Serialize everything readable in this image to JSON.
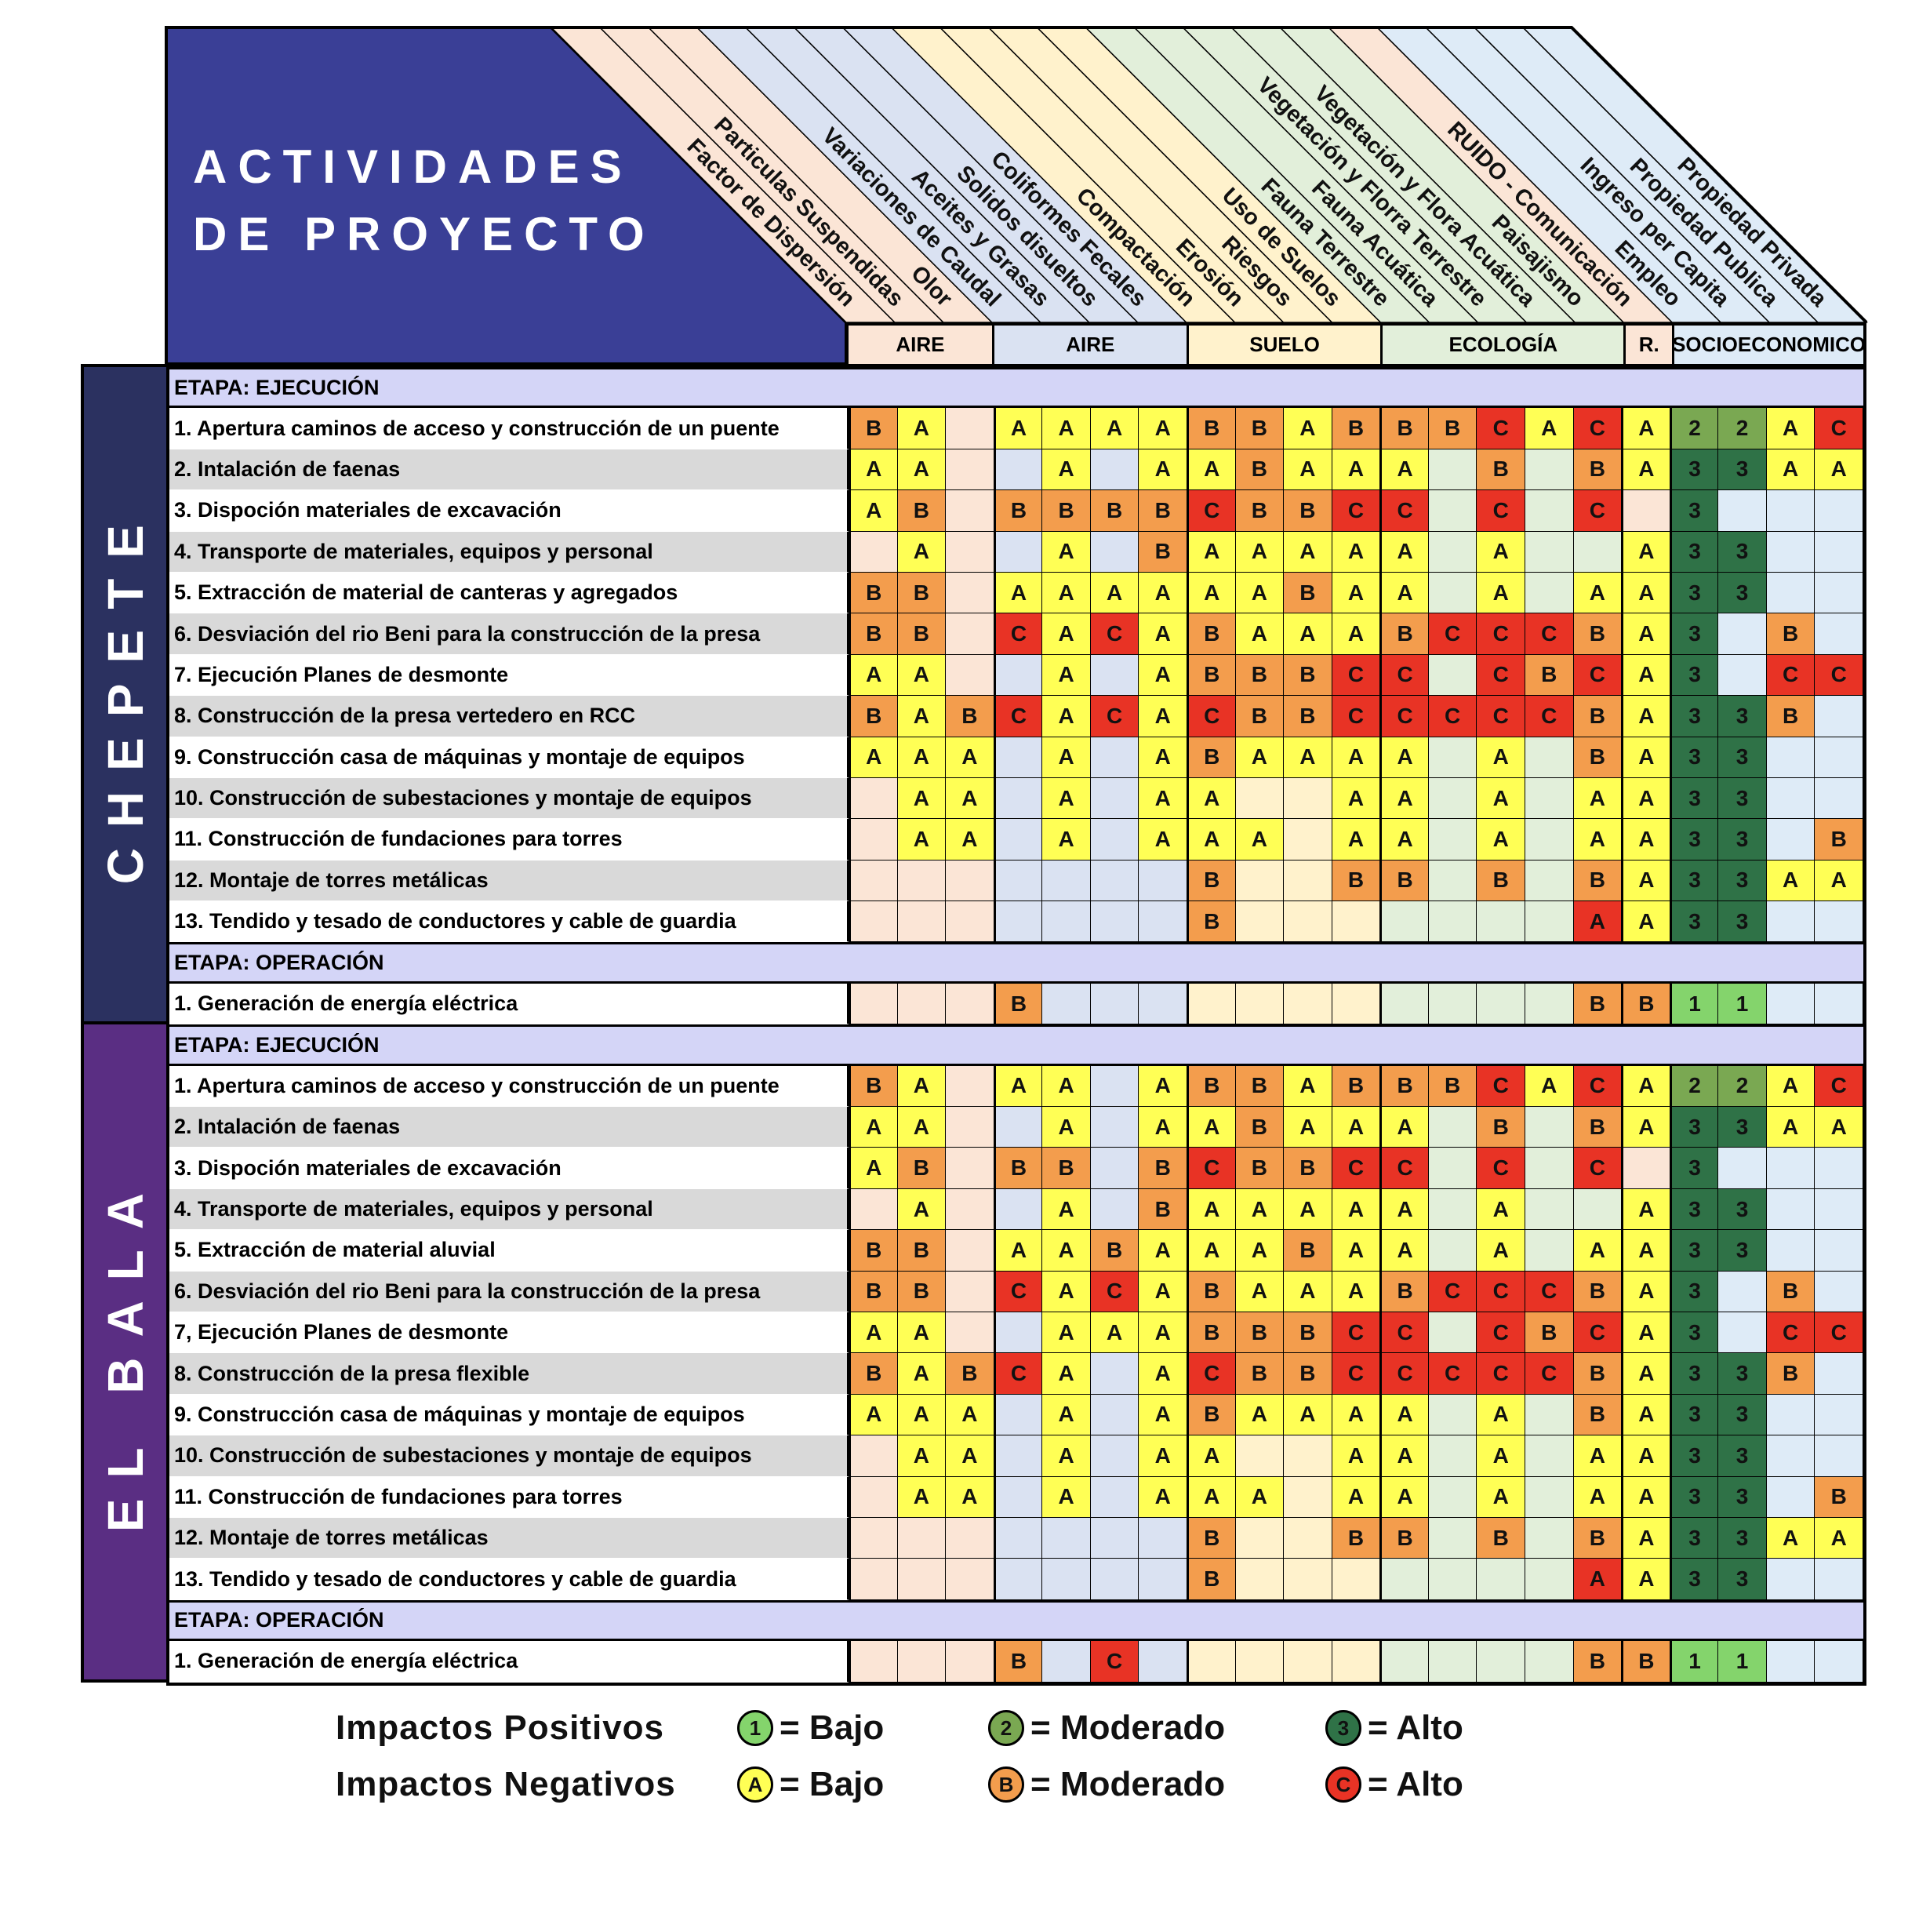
{
  "title": {
    "line1": "ACTIVIDADES",
    "line2": "DE PROYECTO"
  },
  "level_colors": {
    "A": "#ffff55",
    "B": "#f39d4d",
    "C": "#e83325",
    "1": "#84d46c",
    "2": "#7aa852",
    "3": "#2f7247"
  },
  "header_fill": "#3a3f96",
  "groups": [
    {
      "label": "AIRE",
      "span": 3,
      "color": "#fbe5d6"
    },
    {
      "label": "AIRE",
      "span": 4,
      "color": "#dae2f2"
    },
    {
      "label": "SUELO",
      "span": 4,
      "color": "#fff2cc"
    },
    {
      "label": "ECOLOGÍA",
      "span": 5,
      "color": "#e2efda"
    },
    {
      "label": "R.",
      "span": 1,
      "color": "#fbe5d6"
    },
    {
      "label": "SOCIOECONOMICO",
      "span": 4,
      "color": "#deebf7"
    }
  ],
  "factors": [
    "Factor de Dispersión",
    "Particulas Suspendidas",
    "Olor",
    "Variaciones de Caudal",
    "Aceites y Grasas",
    "Solidos disueltos",
    "Coliformes Fecales",
    "Compactación",
    "Erosión",
    "Riesgos",
    "Uso de Suelos",
    "Fauna Terrestre",
    "Fauna Acuática",
    "Vegetación y Florra Terrestre",
    "Vegetación y Flora Acuática",
    "Paisajismo",
    "RUIDO - Comunicación",
    "Empleo",
    "Ingreso per Capita",
    "Propiedad Publica",
    "Propiedad Privada"
  ],
  "sections": [
    {
      "name": "CHEPETE",
      "color": "#2b3160",
      "stages": [
        {
          "label": "ETAPA: EJECUCIÓN",
          "rows": [
            {
              "label": "1. Apertura caminos de acceso y construcción de un puente",
              "cells": [
                "B",
                "A",
                "",
                "A",
                "A",
                "A",
                "A",
                "B",
                "B",
                "A",
                "B",
                "B",
                "B",
                "C",
                "A",
                "C",
                "A",
                "2",
                "2",
                "A",
                "C"
              ]
            },
            {
              "label": "2. Intalación de faenas",
              "cells": [
                "A",
                "A",
                "",
                "",
                "A",
                "",
                "A",
                "A",
                "B",
                "A",
                "A",
                "A",
                "",
                "B",
                "",
                "B",
                "A",
                "3",
                "3",
                "A",
                "A"
              ]
            },
            {
              "label": "3. Dispoción materiales de excavación",
              "cells": [
                "A",
                "B",
                "",
                "B",
                "B",
                "B",
                "B",
                "C",
                "B",
                "B",
                "C",
                "C",
                "",
                "C",
                "",
                "C",
                "",
                "3",
                "",
                "",
                ""
              ]
            },
            {
              "label": "4. Transporte de materiales, equipos y personal",
              "cells": [
                "",
                "A",
                "",
                "",
                "A",
                "",
                "B",
                "A",
                "A",
                "A",
                "A",
                "A",
                "",
                "A",
                "",
                "",
                "A",
                "3",
                "3",
                "",
                ""
              ]
            },
            {
              "label": "5. Extracción de material de canteras y agregados",
              "cells": [
                "B",
                "B",
                "",
                "A",
                "A",
                "A",
                "A",
                "A",
                "A",
                "B",
                "A",
                "A",
                "",
                "A",
                "",
                "A",
                "A",
                "3",
                "3",
                "",
                ""
              ]
            },
            {
              "label": "6. Desviación del rio Beni para la construcción de la presa",
              "cells": [
                "B",
                "B",
                "",
                "C",
                "A",
                "C",
                "A",
                "B",
                "A",
                "A",
                "A",
                "B",
                "C",
                "C",
                "C",
                "B",
                "A",
                "3",
                "",
                "B",
                ""
              ]
            },
            {
              "label": "7. Ejecución Planes de desmonte",
              "cells": [
                "A",
                "A",
                "",
                "",
                "A",
                "",
                "A",
                "B",
                "B",
                "B",
                "C",
                "C",
                "",
                "C",
                "B",
                "C",
                "A",
                "3",
                "",
                "C",
                "C"
              ]
            },
            {
              "label": "8. Construcción de la presa vertedero en RCC",
              "cells": [
                "B",
                "A",
                "B",
                "C",
                "A",
                "C",
                "A",
                "C",
                "B",
                "B",
                "C",
                "C",
                "C",
                "C",
                "C",
                "B",
                "A",
                "3",
                "3",
                "B",
                ""
              ]
            },
            {
              "label": "9. Construcción casa de máquinas y montaje de equipos",
              "cells": [
                "A",
                "A",
                "A",
                "",
                "A",
                "",
                "A",
                "B",
                "A",
                "A",
                "A",
                "A",
                "",
                "A",
                "",
                "B",
                "A",
                "3",
                "3",
                "",
                ""
              ]
            },
            {
              "label": "10. Construcción de subestaciones y montaje de equipos",
              "cells": [
                "",
                "A",
                "A",
                "",
                "A",
                "",
                "A",
                "A",
                "",
                "",
                "A",
                "A",
                "",
                "A",
                "",
                "A",
                "A",
                "3",
                "3",
                "",
                ""
              ]
            },
            {
              "label": "11. Construcción de fundaciones para torres",
              "cells": [
                "",
                "A",
                "A",
                "",
                "A",
                "",
                "A",
                "A",
                "A",
                "",
                "A",
                "A",
                "",
                "A",
                "",
                "A",
                "A",
                "3",
                "3",
                "",
                "B"
              ]
            },
            {
              "label": "12. Montaje de torres metálicas",
              "cells": [
                "",
                "",
                "",
                "",
                "",
                "",
                "",
                "B",
                "",
                "",
                "B",
                "B",
                "",
                "B",
                "",
                "B",
                "A",
                "3",
                "3",
                "A",
                "A"
              ]
            },
            {
              "label": "13. Tendido y tesado de conductores y cable de guardia",
              "cells": [
                "",
                "",
                "",
                "",
                "",
                "",
                "",
                "B",
                "",
                "",
                "",
                "",
                "",
                "",
                "",
                "A",
                "A",
                "3",
                "3",
                "",
                ""
              ],
              "color_override": {
                "15": "C"
              }
            }
          ]
        },
        {
          "label": "ETAPA: OPERACIÓN",
          "rows": [
            {
              "label": "1. Generación de energía eléctrica",
              "cells": [
                "",
                "",
                "",
                "B",
                "",
                "",
                "",
                "",
                "",
                "",
                "",
                "",
                "",
                "",
                "",
                "B",
                "B",
                "1",
                "1",
                "",
                ""
              ]
            }
          ]
        }
      ]
    },
    {
      "name": "EL BALA",
      "color": "#5a2e83",
      "stages": [
        {
          "label": "ETAPA: EJECUCIÓN",
          "rows": [
            {
              "label": "1. Apertura caminos de acceso y construcción de un puente",
              "cells": [
                "B",
                "A",
                "",
                "A",
                "A",
                "",
                "A",
                "B",
                "B",
                "A",
                "B",
                "B",
                "B",
                "C",
                "A",
                "C",
                "A",
                "2",
                "2",
                "A",
                "C"
              ]
            },
            {
              "label": "2. Intalación de faenas",
              "cells": [
                "A",
                "A",
                "",
                "",
                "A",
                "",
                "A",
                "A",
                "B",
                "A",
                "A",
                "A",
                "",
                "B",
                "",
                "B",
                "A",
                "3",
                "3",
                "A",
                "A"
              ]
            },
            {
              "label": "3. Dispoción materiales de excavación",
              "cells": [
                "A",
                "B",
                "",
                "B",
                "B",
                "",
                "B",
                "C",
                "B",
                "B",
                "C",
                "C",
                "",
                "C",
                "",
                "C",
                "",
                "3",
                "",
                "",
                ""
              ]
            },
            {
              "label": "4. Transporte de materiales, equipos y personal",
              "cells": [
                "",
                "A",
                "",
                "",
                "A",
                "",
                "B",
                "A",
                "A",
                "A",
                "A",
                "A",
                "",
                "A",
                "",
                "",
                "A",
                "3",
                "3",
                "",
                ""
              ]
            },
            {
              "label": "5. Extracción de material aluvial",
              "cells": [
                "B",
                "B",
                "",
                "A",
                "A",
                "B",
                "A",
                "A",
                "A",
                "B",
                "A",
                "A",
                "",
                "A",
                "",
                "A",
                "A",
                "3",
                "3",
                "",
                ""
              ]
            },
            {
              "label": "6. Desviación del rio Beni para la construcción de la presa",
              "cells": [
                "B",
                "B",
                "",
                "C",
                "A",
                "C",
                "A",
                "B",
                "A",
                "A",
                "A",
                "B",
                "C",
                "C",
                "C",
                "B",
                "A",
                "3",
                "",
                "B",
                ""
              ]
            },
            {
              "label": "7, Ejecución Planes de desmonte",
              "cells": [
                "A",
                "A",
                "",
                "",
                "A",
                "A",
                "A",
                "B",
                "B",
                "B",
                "C",
                "C",
                "",
                "C",
                "B",
                "C",
                "A",
                "3",
                "",
                "C",
                "C"
              ]
            },
            {
              "label": "8. Construcción de la presa flexible",
              "cells": [
                "B",
                "A",
                "B",
                "C",
                "A",
                "",
                "A",
                "C",
                "B",
                "B",
                "C",
                "C",
                "C",
                "C",
                "C",
                "B",
                "A",
                "3",
                "3",
                "B",
                ""
              ]
            },
            {
              "label": "9. Construcción casa de máquinas y montaje de equipos",
              "cells": [
                "A",
                "A",
                "A",
                "",
                "A",
                "",
                "A",
                "B",
                "A",
                "A",
                "A",
                "A",
                "",
                "A",
                "",
                "B",
                "A",
                "3",
                "3",
                "",
                ""
              ]
            },
            {
              "label": "10. Construcción de subestaciones y montaje de equipos",
              "cells": [
                "",
                "A",
                "A",
                "",
                "A",
                "",
                "A",
                "A",
                "",
                "",
                "A",
                "A",
                "",
                "A",
                "",
                "A",
                "A",
                "3",
                "3",
                "",
                ""
              ]
            },
            {
              "label": "11. Construcción de fundaciones para torres",
              "cells": [
                "",
                "A",
                "A",
                "",
                "A",
                "",
                "A",
                "A",
                "A",
                "",
                "A",
                "A",
                "",
                "A",
                "",
                "A",
                "A",
                "3",
                "3",
                "",
                "B"
              ]
            },
            {
              "label": "12. Montaje de torres metálicas",
              "cells": [
                "",
                "",
                "",
                "",
                "",
                "",
                "",
                "B",
                "",
                "",
                "B",
                "B",
                "",
                "B",
                "",
                "B",
                "A",
                "3",
                "3",
                "A",
                "A"
              ]
            },
            {
              "label": "13. Tendido y tesado de conductores y cable de guardia",
              "cells": [
                "",
                "",
                "",
                "",
                "",
                "",
                "",
                "B",
                "",
                "",
                "",
                "",
                "",
                "",
                "",
                "A",
                "A",
                "3",
                "3",
                "",
                ""
              ],
              "color_override": {
                "15": "C"
              }
            }
          ]
        },
        {
          "label": "ETAPA: OPERACIÓN",
          "rows": [
            {
              "label": "1. Generación de energía eléctrica",
              "cells": [
                "",
                "",
                "",
                "B",
                "",
                "C",
                "",
                "",
                "",
                "",
                "",
                "",
                "",
                "",
                "",
                "B",
                "B",
                "1",
                "1",
                "",
                ""
              ]
            }
          ]
        }
      ]
    }
  ],
  "legend": {
    "positive_label": "Impactos Positivos",
    "negative_label": "Impactos Negativos",
    "positive": [
      {
        "symbol": "1",
        "text": "= Bajo"
      },
      {
        "symbol": "2",
        "text": "= Moderado"
      },
      {
        "symbol": "3",
        "text": "= Alto"
      }
    ],
    "negative": [
      {
        "symbol": "A",
        "text": "= Bajo"
      },
      {
        "symbol": "B",
        "text": "= Moderado"
      },
      {
        "symbol": "C",
        "text": "= Alto"
      }
    ]
  }
}
